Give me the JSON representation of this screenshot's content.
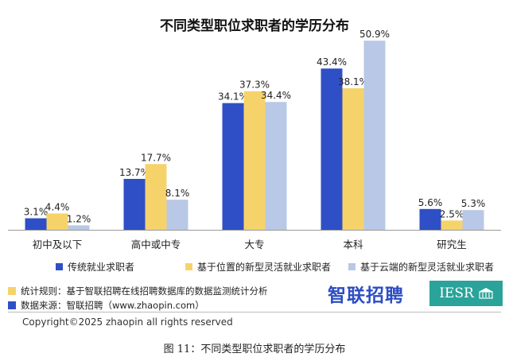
{
  "chart_data": {
    "type": "bar",
    "title": "不同类型职位求职者的学历分布",
    "categories": [
      "初中及以下",
      "高中或中专",
      "大专",
      "本科",
      "研究生"
    ],
    "series": [
      {
        "name": "传统就业求职者",
        "values": [
          3.1,
          13.7,
          34.1,
          43.4,
          5.6
        ],
        "labels": [
          "3.1%",
          "13.7%",
          "34.1%",
          "43.4%",
          "5.6%"
        ]
      },
      {
        "name": "基于位置的新型灵活就业求职者",
        "values": [
          4.4,
          17.7,
          37.3,
          38.1,
          2.5
        ],
        "labels": [
          "4.4%",
          "17.7%",
          "37.3%",
          "38.1%",
          "2.5%"
        ]
      },
      {
        "name": "基于云端的新型灵活就业求职者",
        "values": [
          1.2,
          8.1,
          34.4,
          50.9,
          5.3
        ],
        "labels": [
          "1.2%",
          "8.1%",
          "34.4%",
          "50.9%",
          "5.3%"
        ]
      }
    ],
    "ylim": [
      0,
      52
    ],
    "grid": false,
    "legend_position": "bottom",
    "colors": [
      "#2f4fc7",
      "#f6d36a",
      "#b8c8e6"
    ]
  },
  "notes": {
    "rule": "统计规则：基于智联招聘在线招聘数据库的数据监测统计分析",
    "source": "数据来源：智联招聘（www.zhaopin.com）",
    "rule_color": "#f6d36a",
    "source_color": "#2f4fc7"
  },
  "brand": {
    "name_cn": "智联招聘",
    "iesr": "IESR"
  },
  "copyright": "Copyright©2025 zhaopin all rights reserved",
  "caption": "图 11：不同类型职位求职者的学历分布"
}
